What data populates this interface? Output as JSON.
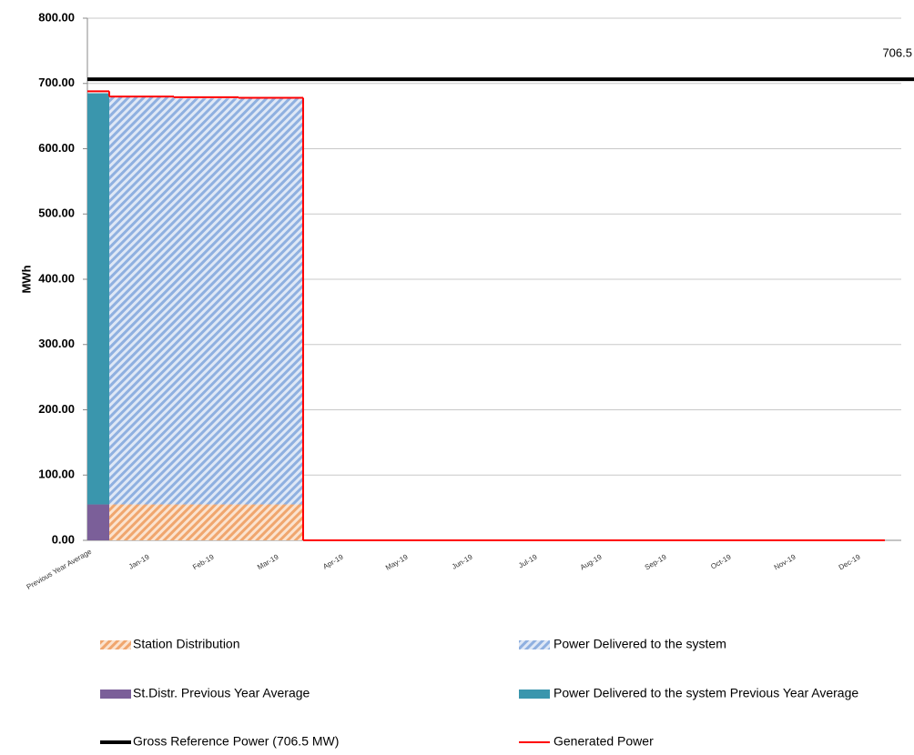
{
  "chart_data": {
    "type": "combo",
    "y_label": "MWh",
    "categories": [
      "Previous Year Average",
      "Jan-19",
      "Feb-19",
      "Mar-19",
      "Apr-19",
      "May-19",
      "Jun-19",
      "Jul-19",
      "Aug-19",
      "Sep-19",
      "Oct-19",
      "Nov-19",
      "Dec-19"
    ],
    "ylim": [
      0,
      800
    ],
    "yticks": [
      {
        "value": 0,
        "label": "0.00"
      },
      {
        "value": 100,
        "label": "100.00"
      },
      {
        "value": 200,
        "label": "200.00"
      },
      {
        "value": 300,
        "label": "300.00"
      },
      {
        "value": 400,
        "label": "400.00"
      },
      {
        "value": 500,
        "label": "500.00"
      },
      {
        "value": 600,
        "label": "600.00"
      },
      {
        "value": 700,
        "label": "700.00"
      },
      {
        "value": 800,
        "label": "800.00"
      }
    ],
    "grid": true,
    "series": [
      {
        "name": "Station Distribution",
        "type": "area",
        "pattern": "hatch",
        "color": "#f0a66e",
        "values": [
          null,
          55,
          55,
          55,
          0,
          0,
          0,
          0,
          0,
          0,
          0,
          0,
          0
        ]
      },
      {
        "name": "Power Delivered to the system",
        "type": "area",
        "pattern": "hatch",
        "color": "#8fb0e0",
        "values": [
          null,
          625,
          622,
          623,
          0,
          0,
          0,
          0,
          0,
          0,
          0,
          0,
          0
        ]
      },
      {
        "name": "St.Distr. Previous Year Average",
        "type": "bar",
        "color": "#7b5f99",
        "values": [
          55,
          null,
          null,
          null,
          null,
          null,
          null,
          null,
          null,
          null,
          null,
          null,
          null
        ]
      },
      {
        "name": "Power Delivered to the system Previous Year Average",
        "type": "bar",
        "color": "#3a96ad",
        "values": [
          630,
          null,
          null,
          null,
          null,
          null,
          null,
          null,
          null,
          null,
          null,
          null,
          null
        ]
      },
      {
        "name": "Gross Reference Power (706.5 MW)",
        "type": "reference",
        "color": "#000000",
        "value": 706.5,
        "value_label": "706.5"
      },
      {
        "name": "Generated Power",
        "type": "line",
        "color": "#ff0000",
        "values": [
          688,
          680,
          679,
          678,
          0,
          0,
          0,
          0,
          0,
          0,
          0,
          0,
          0
        ]
      }
    ]
  }
}
